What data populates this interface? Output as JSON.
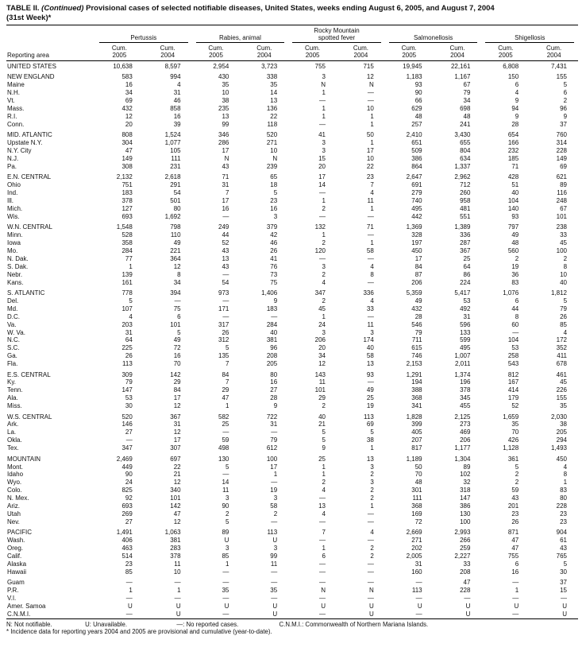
{
  "title": {
    "table_label": "TABLE II.",
    "continued": "(Continued)",
    "text": "Provisional cases of selected notifiable diseases, United States, weeks ending August 6, 2005, and August 7, 2004",
    "week_note": "(31st Week)*"
  },
  "header": {
    "reporting_area": "Reporting area",
    "groups": [
      {
        "name": "Pertussis"
      },
      {
        "name": "Rabies, animal"
      },
      {
        "name": "Rocky Mountain\nspotted fever"
      },
      {
        "name": "Salmonellosis"
      },
      {
        "name": "Shigellosis"
      }
    ],
    "subcols": [
      {
        "line1": "Cum.",
        "line2": "2005"
      },
      {
        "line1": "Cum.",
        "line2": "2004"
      }
    ]
  },
  "rows": [
    {
      "area": "UNITED STATES",
      "type": "total",
      "gap": false,
      "values": [
        "10,638",
        "8,597",
        "2,954",
        "3,723",
        "755",
        "715",
        "19,945",
        "22,161",
        "6,808",
        "7,431"
      ]
    },
    {
      "area": "NEW ENGLAND",
      "type": "region",
      "gap": true,
      "values": [
        "583",
        "994",
        "430",
        "338",
        "3",
        "12",
        "1,183",
        "1,167",
        "150",
        "155"
      ]
    },
    {
      "area": "Maine",
      "type": "state",
      "gap": false,
      "values": [
        "16",
        "4",
        "35",
        "35",
        "N",
        "N",
        "93",
        "67",
        "6",
        "5"
      ]
    },
    {
      "area": "N.H.",
      "type": "state",
      "gap": false,
      "values": [
        "34",
        "31",
        "10",
        "14",
        "1",
        "—",
        "90",
        "79",
        "4",
        "6"
      ]
    },
    {
      "area": "Vt.",
      "type": "state",
      "gap": false,
      "values": [
        "69",
        "46",
        "38",
        "13",
        "—",
        "—",
        "66",
        "34",
        "9",
        "2"
      ]
    },
    {
      "area": "Mass.",
      "type": "state",
      "gap": false,
      "values": [
        "432",
        "858",
        "235",
        "136",
        "1",
        "10",
        "629",
        "698",
        "94",
        "96"
      ]
    },
    {
      "area": "R.I.",
      "type": "state",
      "gap": false,
      "values": [
        "12",
        "16",
        "13",
        "22",
        "1",
        "1",
        "48",
        "48",
        "9",
        "9"
      ]
    },
    {
      "area": "Conn.",
      "type": "state",
      "gap": false,
      "values": [
        "20",
        "39",
        "99",
        "118",
        "—",
        "1",
        "257",
        "241",
        "28",
        "37"
      ]
    },
    {
      "area": "MID. ATLANTIC",
      "type": "region",
      "gap": true,
      "values": [
        "808",
        "1,524",
        "346",
        "520",
        "41",
        "50",
        "2,410",
        "3,430",
        "654",
        "760"
      ]
    },
    {
      "area": "Upstate N.Y.",
      "type": "state",
      "gap": false,
      "values": [
        "304",
        "1,077",
        "286",
        "271",
        "3",
        "1",
        "651",
        "655",
        "166",
        "314"
      ]
    },
    {
      "area": "N.Y. City",
      "type": "state",
      "gap": false,
      "values": [
        "47",
        "105",
        "17",
        "10",
        "3",
        "17",
        "509",
        "804",
        "232",
        "228"
      ]
    },
    {
      "area": "N.J.",
      "type": "state",
      "gap": false,
      "values": [
        "149",
        "111",
        "N",
        "N",
        "15",
        "10",
        "386",
        "634",
        "185",
        "149"
      ]
    },
    {
      "area": "Pa.",
      "type": "state",
      "gap": false,
      "values": [
        "308",
        "231",
        "43",
        "239",
        "20",
        "22",
        "864",
        "1,337",
        "71",
        "69"
      ]
    },
    {
      "area": "E.N. CENTRAL",
      "type": "region",
      "gap": true,
      "values": [
        "2,132",
        "2,618",
        "71",
        "65",
        "17",
        "23",
        "2,647",
        "2,962",
        "428",
        "621"
      ]
    },
    {
      "area": "Ohio",
      "type": "state",
      "gap": false,
      "values": [
        "751",
        "291",
        "31",
        "18",
        "14",
        "7",
        "691",
        "712",
        "51",
        "89"
      ]
    },
    {
      "area": "Ind.",
      "type": "state",
      "gap": false,
      "values": [
        "183",
        "54",
        "7",
        "5",
        "—",
        "4",
        "279",
        "260",
        "40",
        "116"
      ]
    },
    {
      "area": "Ill.",
      "type": "state",
      "gap": false,
      "values": [
        "378",
        "501",
        "17",
        "23",
        "1",
        "11",
        "740",
        "958",
        "104",
        "248"
      ]
    },
    {
      "area": "Mich.",
      "type": "state",
      "gap": false,
      "values": [
        "127",
        "80",
        "16",
        "16",
        "2",
        "1",
        "495",
        "481",
        "140",
        "67"
      ]
    },
    {
      "area": "Wis.",
      "type": "state",
      "gap": false,
      "values": [
        "693",
        "1,692",
        "—",
        "3",
        "—",
        "—",
        "442",
        "551",
        "93",
        "101"
      ]
    },
    {
      "area": "W.N. CENTRAL",
      "type": "region",
      "gap": true,
      "values": [
        "1,548",
        "798",
        "249",
        "379",
        "132",
        "71",
        "1,369",
        "1,389",
        "797",
        "238"
      ]
    },
    {
      "area": "Minn.",
      "type": "state",
      "gap": false,
      "values": [
        "528",
        "110",
        "44",
        "42",
        "1",
        "—",
        "328",
        "336",
        "49",
        "33"
      ]
    },
    {
      "area": "Iowa",
      "type": "state",
      "gap": false,
      "values": [
        "358",
        "49",
        "52",
        "46",
        "2",
        "1",
        "197",
        "287",
        "48",
        "45"
      ]
    },
    {
      "area": "Mo.",
      "type": "state",
      "gap": false,
      "values": [
        "284",
        "221",
        "43",
        "26",
        "120",
        "58",
        "450",
        "367",
        "560",
        "100"
      ]
    },
    {
      "area": "N. Dak.",
      "type": "state",
      "gap": false,
      "values": [
        "77",
        "364",
        "13",
        "41",
        "—",
        "—",
        "17",
        "25",
        "2",
        "2"
      ]
    },
    {
      "area": "S. Dak.",
      "type": "state",
      "gap": false,
      "values": [
        "1",
        "12",
        "43",
        "76",
        "3",
        "4",
        "84",
        "64",
        "19",
        "8"
      ]
    },
    {
      "area": "Nebr.",
      "type": "state",
      "gap": false,
      "values": [
        "139",
        "8",
        "—",
        "73",
        "2",
        "8",
        "87",
        "86",
        "36",
        "10"
      ]
    },
    {
      "area": "Kans.",
      "type": "state",
      "gap": false,
      "values": [
        "161",
        "34",
        "54",
        "75",
        "4",
        "—",
        "206",
        "224",
        "83",
        "40"
      ]
    },
    {
      "area": "S. ATLANTIC",
      "type": "region",
      "gap": true,
      "values": [
        "778",
        "394",
        "973",
        "1,406",
        "347",
        "336",
        "5,359",
        "5,417",
        "1,076",
        "1,812"
      ]
    },
    {
      "area": "Del.",
      "type": "state",
      "gap": false,
      "values": [
        "5",
        "—",
        "—",
        "9",
        "2",
        "4",
        "49",
        "53",
        "6",
        "5"
      ]
    },
    {
      "area": "Md.",
      "type": "state",
      "gap": false,
      "values": [
        "107",
        "75",
        "171",
        "183",
        "45",
        "33",
        "432",
        "492",
        "44",
        "79"
      ]
    },
    {
      "area": "D.C.",
      "type": "state",
      "gap": false,
      "values": [
        "4",
        "6",
        "—",
        "—",
        "1",
        "—",
        "28",
        "31",
        "8",
        "26"
      ]
    },
    {
      "area": "Va.",
      "type": "state",
      "gap": false,
      "values": [
        "203",
        "101",
        "317",
        "284",
        "24",
        "11",
        "546",
        "596",
        "60",
        "85"
      ]
    },
    {
      "area": "W. Va.",
      "type": "state",
      "gap": false,
      "values": [
        "31",
        "5",
        "26",
        "40",
        "3",
        "3",
        "79",
        "133",
        "—",
        "4"
      ]
    },
    {
      "area": "N.C.",
      "type": "state",
      "gap": false,
      "values": [
        "64",
        "49",
        "312",
        "381",
        "206",
        "174",
        "711",
        "599",
        "104",
        "172"
      ]
    },
    {
      "area": "S.C.",
      "type": "state",
      "gap": false,
      "values": [
        "225",
        "72",
        "5",
        "96",
        "20",
        "40",
        "615",
        "495",
        "53",
        "352"
      ]
    },
    {
      "area": "Ga.",
      "type": "state",
      "gap": false,
      "values": [
        "26",
        "16",
        "135",
        "208",
        "34",
        "58",
        "746",
        "1,007",
        "258",
        "411"
      ]
    },
    {
      "area": "Fla.",
      "type": "state",
      "gap": false,
      "values": [
        "113",
        "70",
        "7",
        "205",
        "12",
        "13",
        "2,153",
        "2,011",
        "543",
        "678"
      ]
    },
    {
      "area": "E.S. CENTRAL",
      "type": "region",
      "gap": true,
      "values": [
        "309",
        "142",
        "84",
        "80",
        "143",
        "93",
        "1,291",
        "1,374",
        "812",
        "461"
      ]
    },
    {
      "area": "Ky.",
      "type": "state",
      "gap": false,
      "values": [
        "79",
        "29",
        "7",
        "16",
        "11",
        "—",
        "194",
        "196",
        "167",
        "45"
      ]
    },
    {
      "area": "Tenn.",
      "type": "state",
      "gap": false,
      "values": [
        "147",
        "84",
        "29",
        "27",
        "101",
        "49",
        "388",
        "378",
        "414",
        "226"
      ]
    },
    {
      "area": "Ala.",
      "type": "state",
      "gap": false,
      "values": [
        "53",
        "17",
        "47",
        "28",
        "29",
        "25",
        "368",
        "345",
        "179",
        "155"
      ]
    },
    {
      "area": "Miss.",
      "type": "state",
      "gap": false,
      "values": [
        "30",
        "12",
        "1",
        "9",
        "2",
        "19",
        "341",
        "455",
        "52",
        "35"
      ]
    },
    {
      "area": "W.S. CENTRAL",
      "type": "region",
      "gap": true,
      "values": [
        "520",
        "367",
        "582",
        "722",
        "40",
        "113",
        "1,828",
        "2,125",
        "1,659",
        "2,030"
      ]
    },
    {
      "area": "Ark.",
      "type": "state",
      "gap": false,
      "values": [
        "146",
        "31",
        "25",
        "31",
        "21",
        "69",
        "399",
        "273",
        "35",
        "38"
      ]
    },
    {
      "area": "La.",
      "type": "state",
      "gap": false,
      "values": [
        "27",
        "12",
        "—",
        "—",
        "5",
        "5",
        "405",
        "469",
        "70",
        "205"
      ]
    },
    {
      "area": "Okla.",
      "type": "state",
      "gap": false,
      "values": [
        "—",
        "17",
        "59",
        "79",
        "5",
        "38",
        "207",
        "206",
        "426",
        "294"
      ]
    },
    {
      "area": "Tex.",
      "type": "state",
      "gap": false,
      "values": [
        "347",
        "307",
        "498",
        "612",
        "9",
        "1",
        "817",
        "1,177",
        "1,128",
        "1,493"
      ]
    },
    {
      "area": "MOUNTAIN",
      "type": "region",
      "gap": true,
      "values": [
        "2,469",
        "697",
        "130",
        "100",
        "25",
        "13",
        "1,189",
        "1,304",
        "361",
        "450"
      ]
    },
    {
      "area": "Mont.",
      "type": "state",
      "gap": false,
      "values": [
        "449",
        "22",
        "5",
        "17",
        "1",
        "3",
        "50",
        "89",
        "5",
        "4"
      ]
    },
    {
      "area": "Idaho",
      "type": "state",
      "gap": false,
      "values": [
        "90",
        "21",
        "—",
        "1",
        "1",
        "2",
        "70",
        "102",
        "2",
        "8"
      ]
    },
    {
      "area": "Wyo.",
      "type": "state",
      "gap": false,
      "values": [
        "24",
        "12",
        "14",
        "—",
        "2",
        "3",
        "48",
        "32",
        "2",
        "1"
      ]
    },
    {
      "area": "Colo.",
      "type": "state",
      "gap": false,
      "values": [
        "825",
        "340",
        "11",
        "19",
        "4",
        "2",
        "301",
        "318",
        "59",
        "83"
      ]
    },
    {
      "area": "N. Mex.",
      "type": "state",
      "gap": false,
      "values": [
        "92",
        "101",
        "3",
        "3",
        "—",
        "2",
        "111",
        "147",
        "43",
        "80"
      ]
    },
    {
      "area": "Ariz.",
      "type": "state",
      "gap": false,
      "values": [
        "693",
        "142",
        "90",
        "58",
        "13",
        "1",
        "368",
        "386",
        "201",
        "228"
      ]
    },
    {
      "area": "Utah",
      "type": "state",
      "gap": false,
      "values": [
        "269",
        "47",
        "2",
        "2",
        "4",
        "—",
        "169",
        "130",
        "23",
        "23"
      ]
    },
    {
      "area": "Nev.",
      "type": "state",
      "gap": false,
      "values": [
        "27",
        "12",
        "5",
        "—",
        "—",
        "—",
        "72",
        "100",
        "26",
        "23"
      ]
    },
    {
      "area": "PACIFIC",
      "type": "region",
      "gap": true,
      "values": [
        "1,491",
        "1,063",
        "89",
        "113",
        "7",
        "4",
        "2,669",
        "2,993",
        "871",
        "904"
      ]
    },
    {
      "area": "Wash.",
      "type": "state",
      "gap": false,
      "values": [
        "406",
        "381",
        "U",
        "U",
        "—",
        "—",
        "271",
        "266",
        "47",
        "61"
      ]
    },
    {
      "area": "Oreg.",
      "type": "state",
      "gap": false,
      "values": [
        "463",
        "283",
        "3",
        "3",
        "1",
        "2",
        "202",
        "259",
        "47",
        "43"
      ]
    },
    {
      "area": "Calif.",
      "type": "state",
      "gap": false,
      "values": [
        "514",
        "378",
        "85",
        "99",
        "6",
        "2",
        "2,005",
        "2,227",
        "755",
        "765"
      ]
    },
    {
      "area": "Alaska",
      "type": "state",
      "gap": false,
      "values": [
        "23",
        "11",
        "1",
        "11",
        "—",
        "—",
        "31",
        "33",
        "6",
        "5"
      ]
    },
    {
      "area": "Hawaii",
      "type": "state",
      "gap": false,
      "values": [
        "85",
        "10",
        "—",
        "—",
        "—",
        "—",
        "160",
        "208",
        "16",
        "30"
      ]
    },
    {
      "area": "Guam",
      "type": "territory",
      "gap": true,
      "values": [
        "—",
        "—",
        "—",
        "—",
        "—",
        "—",
        "—",
        "47",
        "—",
        "37"
      ]
    },
    {
      "area": "P.R.",
      "type": "territory",
      "gap": false,
      "values": [
        "1",
        "1",
        "35",
        "35",
        "N",
        "N",
        "113",
        "228",
        "1",
        "15"
      ]
    },
    {
      "area": "V.I.",
      "type": "territory",
      "gap": false,
      "values": [
        "—",
        "—",
        "—",
        "—",
        "—",
        "—",
        "—",
        "—",
        "—",
        "—"
      ]
    },
    {
      "area": "Amer. Samoa",
      "type": "territory",
      "gap": false,
      "values": [
        "U",
        "U",
        "U",
        "U",
        "U",
        "U",
        "U",
        "U",
        "U",
        "U"
      ]
    },
    {
      "area": "C.N.M.I.",
      "type": "territory",
      "gap": false,
      "values": [
        "—",
        "U",
        "—",
        "U",
        "—",
        "U",
        "—",
        "U",
        "—",
        "U"
      ]
    }
  ],
  "footnotes": {
    "legend": [
      "N: Not notifiable.",
      "U: Unavailable.",
      "—: No reported cases.",
      "C.N.M.I.: Commonwealth of Northern Mariana Islands."
    ],
    "note": "* Incidence data for reporting years 2004 and 2005 are provisional and cumulative (year-to-date)."
  }
}
